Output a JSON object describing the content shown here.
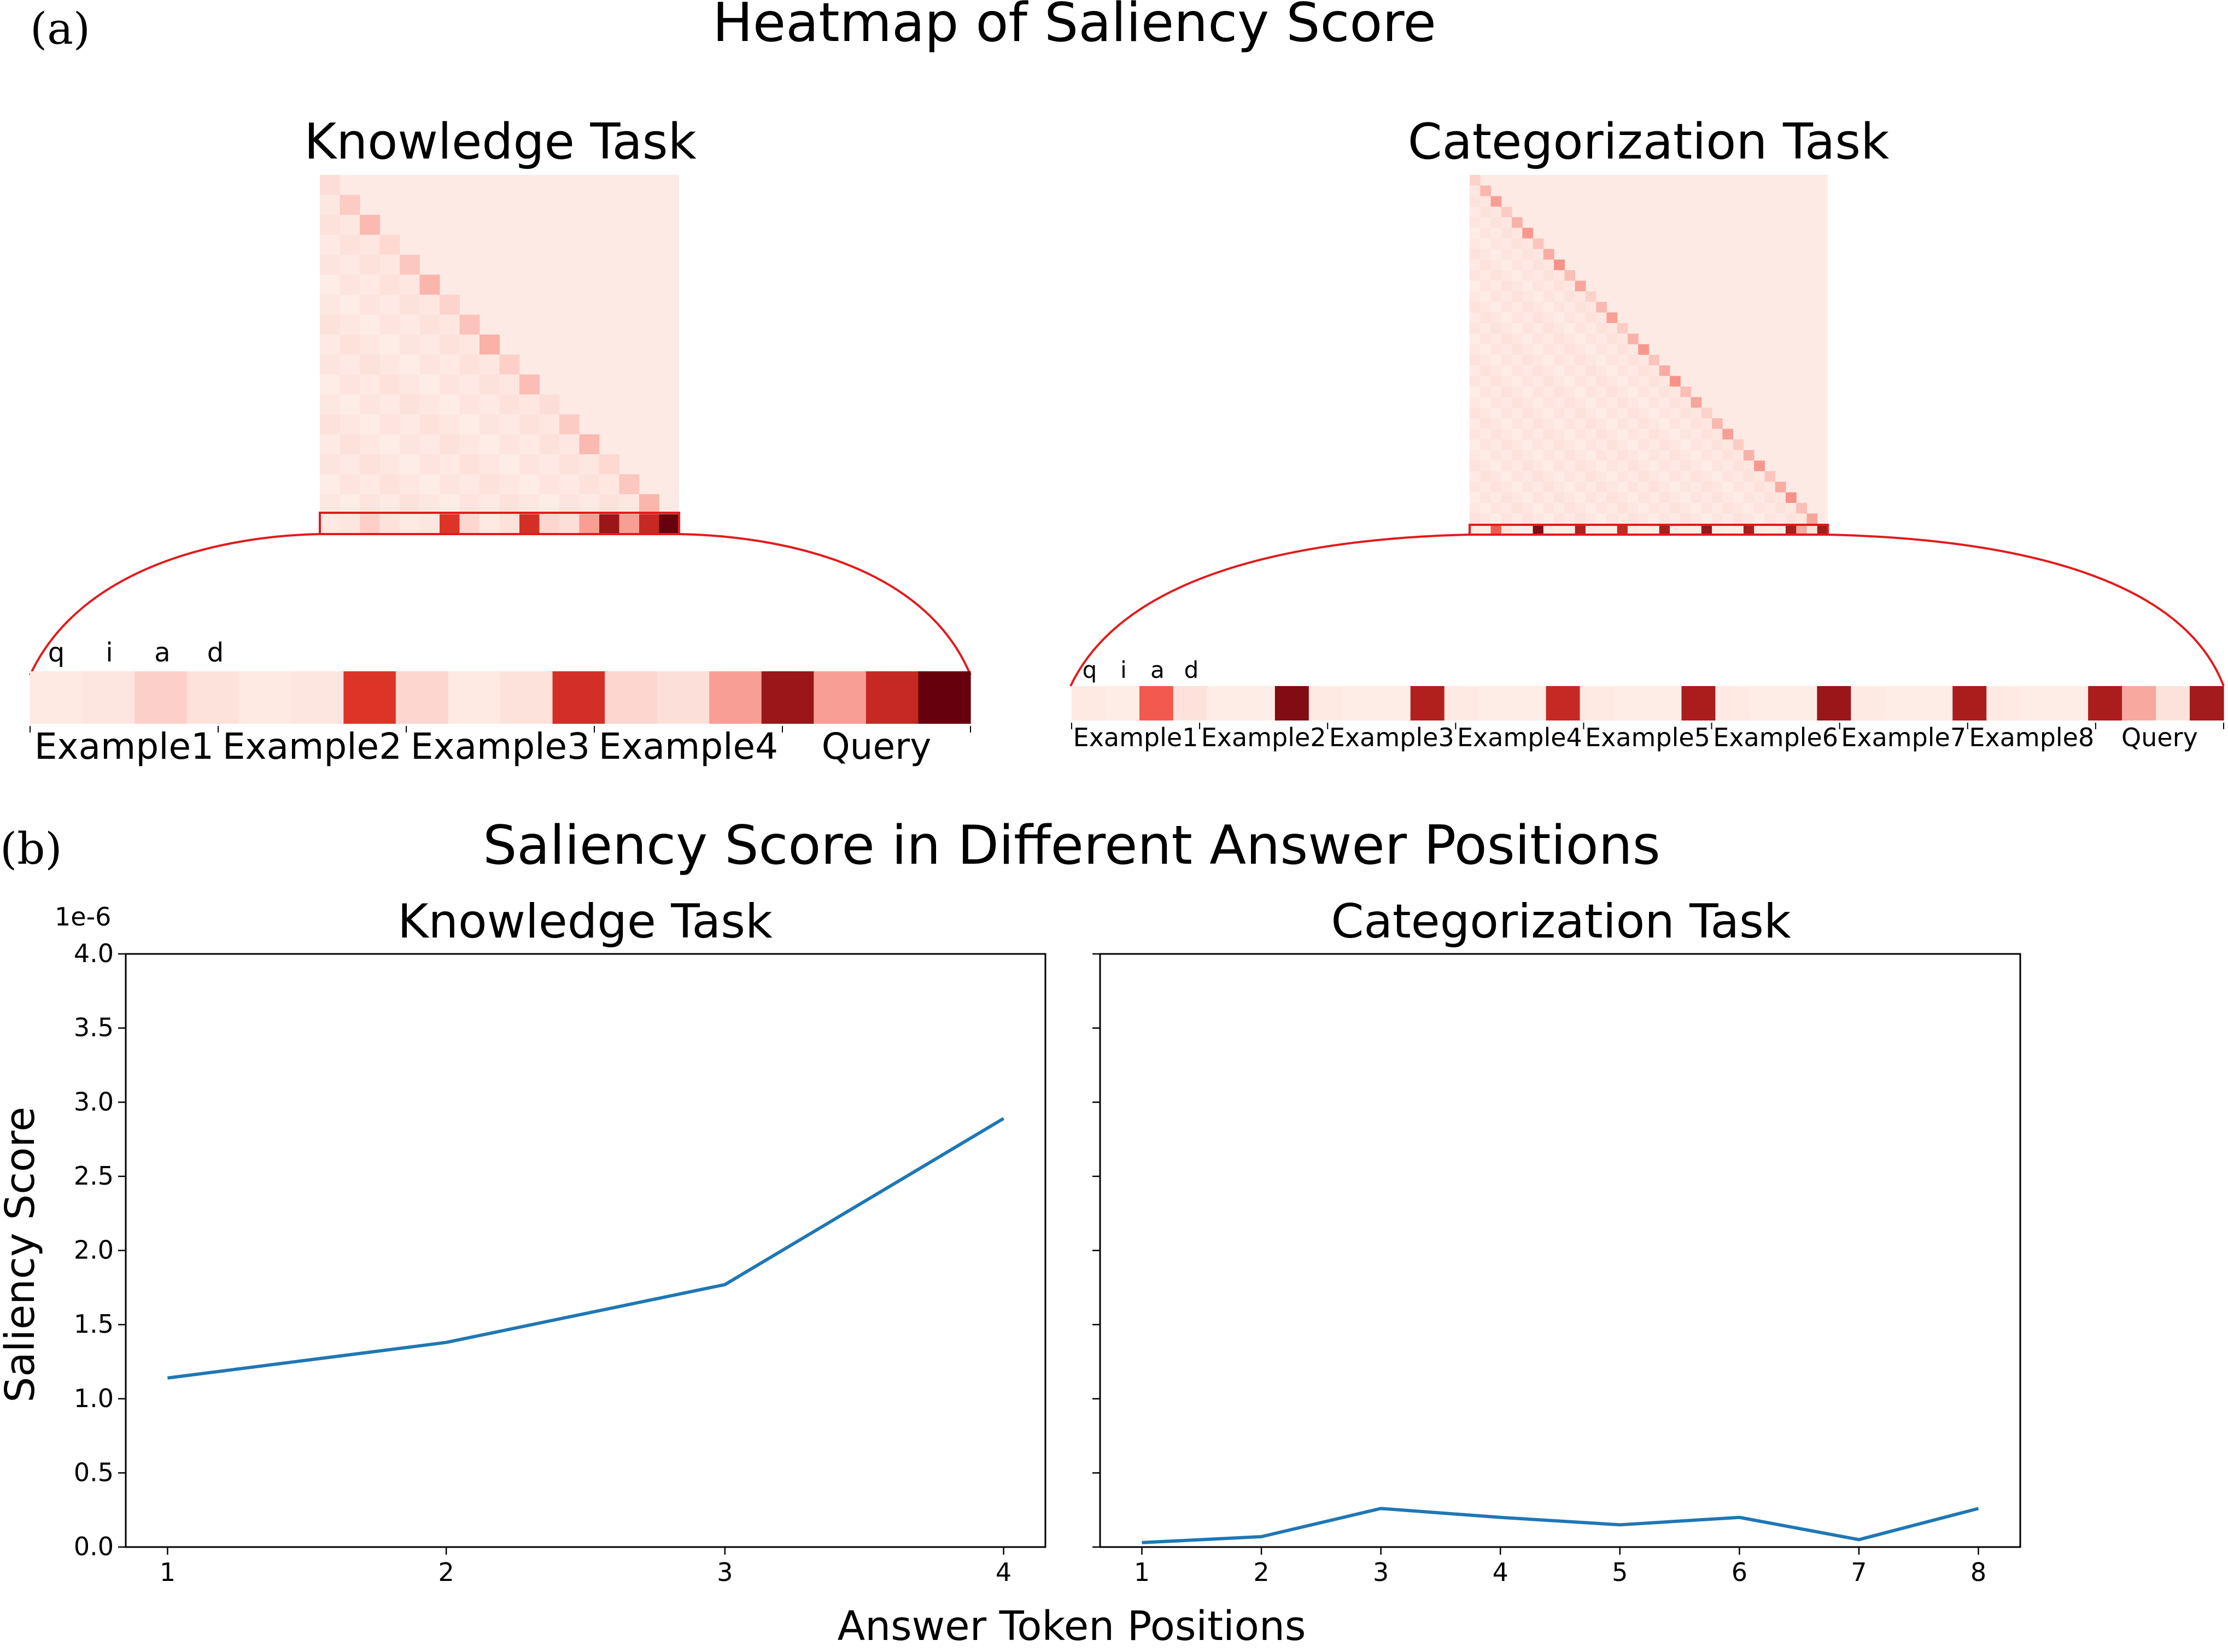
{
  "panel_a": {
    "label": "(a)",
    "title": "Heatmap of Saliency Score",
    "colormap": {
      "low": "#fff5f0",
      "mid": "#ef3b2c",
      "high": "#67000d",
      "outline": "#e31a1c"
    },
    "knowledge": {
      "title": "Knowledge Task",
      "token_letters": [
        "q",
        "i",
        "a",
        "d"
      ],
      "groups": [
        "Example1",
        "Example2",
        "Example3",
        "Example4",
        "Query"
      ],
      "strip_values": [
        0.04,
        0.05,
        0.12,
        0.06,
        0.04,
        0.05,
        0.65,
        0.1,
        0.04,
        0.06,
        0.68,
        0.1,
        0.07,
        0.28,
        0.85,
        0.28,
        0.72,
        1.0
      ]
    },
    "categorization": {
      "title": "Categorization Task",
      "token_letters": [
        "q",
        "i",
        "a",
        "d"
      ],
      "groups": [
        "Example1",
        "Example2",
        "Example3",
        "Example4",
        "Example5",
        "Example6",
        "Example7",
        "Example8",
        "Query"
      ],
      "strip_values": [
        0.04,
        0.03,
        0.5,
        0.06,
        0.03,
        0.03,
        0.92,
        0.04,
        0.03,
        0.03,
        0.78,
        0.04,
        0.03,
        0.03,
        0.72,
        0.04,
        0.03,
        0.03,
        0.8,
        0.04,
        0.03,
        0.03,
        0.85,
        0.04,
        0.03,
        0.03,
        0.8,
        0.04,
        0.03,
        0.03,
        0.8,
        0.25,
        0.06,
        0.82
      ]
    }
  },
  "panel_b": {
    "label": "(b)",
    "title": "Saliency Score in Different Answer Positions",
    "xlabel": "Answer Token Positions",
    "ylabel": "Saliency Score",
    "y_scale_label": "1e-6"
  },
  "chart_data": [
    {
      "type": "line",
      "title": "Knowledge Task",
      "x": [
        1,
        2,
        3,
        4
      ],
      "values": [
        1.14,
        1.38,
        1.77,
        2.89
      ],
      "xlim": [
        0.85,
        4.15
      ],
      "ylim": [
        0.0,
        4.0
      ],
      "yticks": [
        "0.0",
        "0.5",
        "1.0",
        "1.5",
        "2.0",
        "2.5",
        "3.0",
        "3.5",
        "4.0"
      ],
      "xticks": [
        "1",
        "2",
        "3",
        "4"
      ],
      "color": "#1f77b4"
    },
    {
      "type": "line",
      "title": "Categorization Task",
      "x": [
        1,
        2,
        3,
        4,
        5,
        6,
        7,
        8
      ],
      "values": [
        0.03,
        0.07,
        0.26,
        0.2,
        0.15,
        0.2,
        0.05,
        0.26
      ],
      "xlim": [
        0.65,
        8.35
      ],
      "ylim": [
        0.0,
        4.0
      ],
      "xticks": [
        "1",
        "2",
        "3",
        "4",
        "5",
        "6",
        "7",
        "8"
      ],
      "color": "#1f77b4"
    }
  ]
}
